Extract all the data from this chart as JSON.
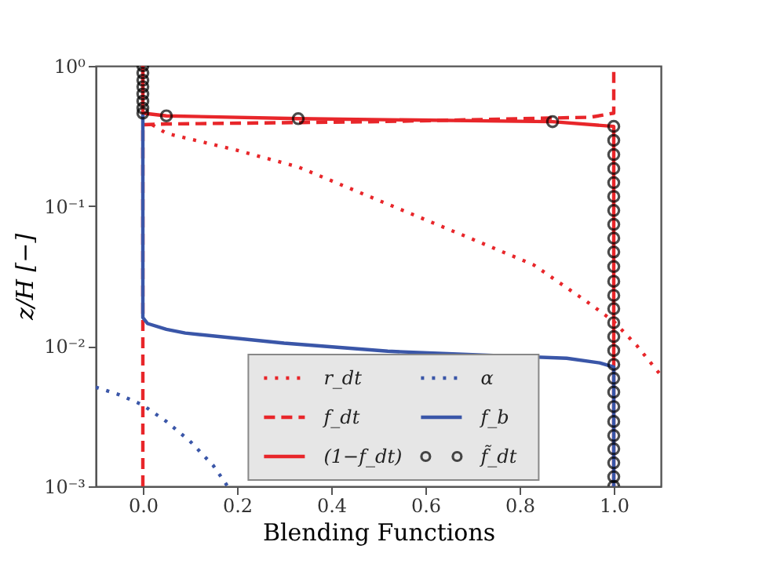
{
  "chart_data": {
    "type": "line",
    "xlabel": "Blending Functions",
    "ylabel": "z/H [−]",
    "log": "y",
    "legend": "bottom",
    "xlim": [
      -0.1,
      1.1
    ],
    "ylim": [
      0.001,
      1
    ],
    "xticks": [
      {
        "value": 0,
        "label": "0.0"
      },
      {
        "value": 0.2,
        "label": "0.2"
      },
      {
        "value": 0.4,
        "label": "0.4"
      },
      {
        "value": 0.6,
        "label": "0.6"
      },
      {
        "value": 0.8,
        "label": "0.8"
      },
      {
        "value": 1,
        "label": "1.0"
      }
    ],
    "yticks": [
      {
        "value": 0.001,
        "label": "10⁻³"
      },
      {
        "value": 0.01,
        "label": "10⁻²"
      },
      {
        "value": 0.1,
        "label": "10⁻¹"
      },
      {
        "value": 1,
        "label": "10⁰"
      }
    ],
    "series": [
      {
        "name": "r_dt",
        "line_style": "dotted",
        "color": "#e8262a",
        "x": [
          0.02,
          0.05,
          0.2,
          0.33,
          0.5,
          0.7,
          0.83,
          0.95,
          1.0,
          1.05,
          1.1
        ],
        "values": [
          0.38,
          0.33,
          0.25,
          0.19,
          0.11,
          0.058,
          0.038,
          0.02,
          0.015,
          0.01,
          0.0062
        ]
      },
      {
        "name": "f_dt",
        "line_style": "dashed",
        "color": "#e8262a",
        "x": [
          0,
          0,
          0.05,
          0.5,
          0.95,
          1.0,
          1.0
        ],
        "values": [
          0.001,
          0.38,
          0.385,
          0.4,
          0.43,
          0.46,
          1
        ]
      },
      {
        "name": "(1−f_dt)",
        "line_style": "solid",
        "color": "#e8262a",
        "x": [
          0,
          0,
          0.05,
          0.33,
          0.87,
          1,
          1
        ],
        "values": [
          1,
          0.46,
          0.44,
          0.42,
          0.4,
          0.37,
          0.001
        ]
      },
      {
        "name": "α",
        "line_style": "dotted",
        "color": "#3a56a8",
        "x": [
          -0.1,
          -0.05,
          0.0,
          0.05,
          0.1,
          0.15,
          0.18
        ],
        "values": [
          0.0051,
          0.0045,
          0.0038,
          0.0029,
          0.0021,
          0.0014,
          0.001
        ]
      },
      {
        "name": "f_b",
        "line_style": "solid",
        "color": "#3a56a8",
        "x": [
          0,
          0,
          0.01,
          0.05,
          0.09,
          0.3,
          0.52,
          0.7,
          0.9,
          0.97,
          1,
          1
        ],
        "values": [
          0.45,
          0.016,
          0.0145,
          0.0132,
          0.0124,
          0.0105,
          0.0092,
          0.0087,
          0.0082,
          0.0076,
          0.0071,
          0.001
        ]
      },
      {
        "name": "f̃_dt",
        "type": "scatter",
        "marker": "circle",
        "color": "#000000",
        "x": [
          0,
          0,
          0,
          0,
          0,
          0,
          0,
          0,
          0.05,
          0.33,
          0.87,
          1,
          1,
          1,
          1,
          1,
          1,
          1,
          1,
          1,
          1,
          1,
          1,
          1,
          1,
          1,
          1,
          1,
          1,
          1,
          1,
          1,
          1,
          1,
          1,
          1,
          1,
          1
        ],
        "values": [
          1,
          0.89,
          0.79,
          0.71,
          0.63,
          0.56,
          0.5,
          0.46,
          0.44,
          0.42,
          0.4,
          0.37,
          0.294,
          0.233,
          0.185,
          0.147,
          0.117,
          0.093,
          0.074,
          0.059,
          0.047,
          0.037,
          0.029,
          0.023,
          0.0185,
          0.0147,
          0.0117,
          0.0093,
          0.0074,
          0.0059,
          0.0047,
          0.0037,
          0.0029,
          0.0023,
          0.00185,
          0.00147,
          0.00117,
          0.001
        ]
      }
    ]
  }
}
